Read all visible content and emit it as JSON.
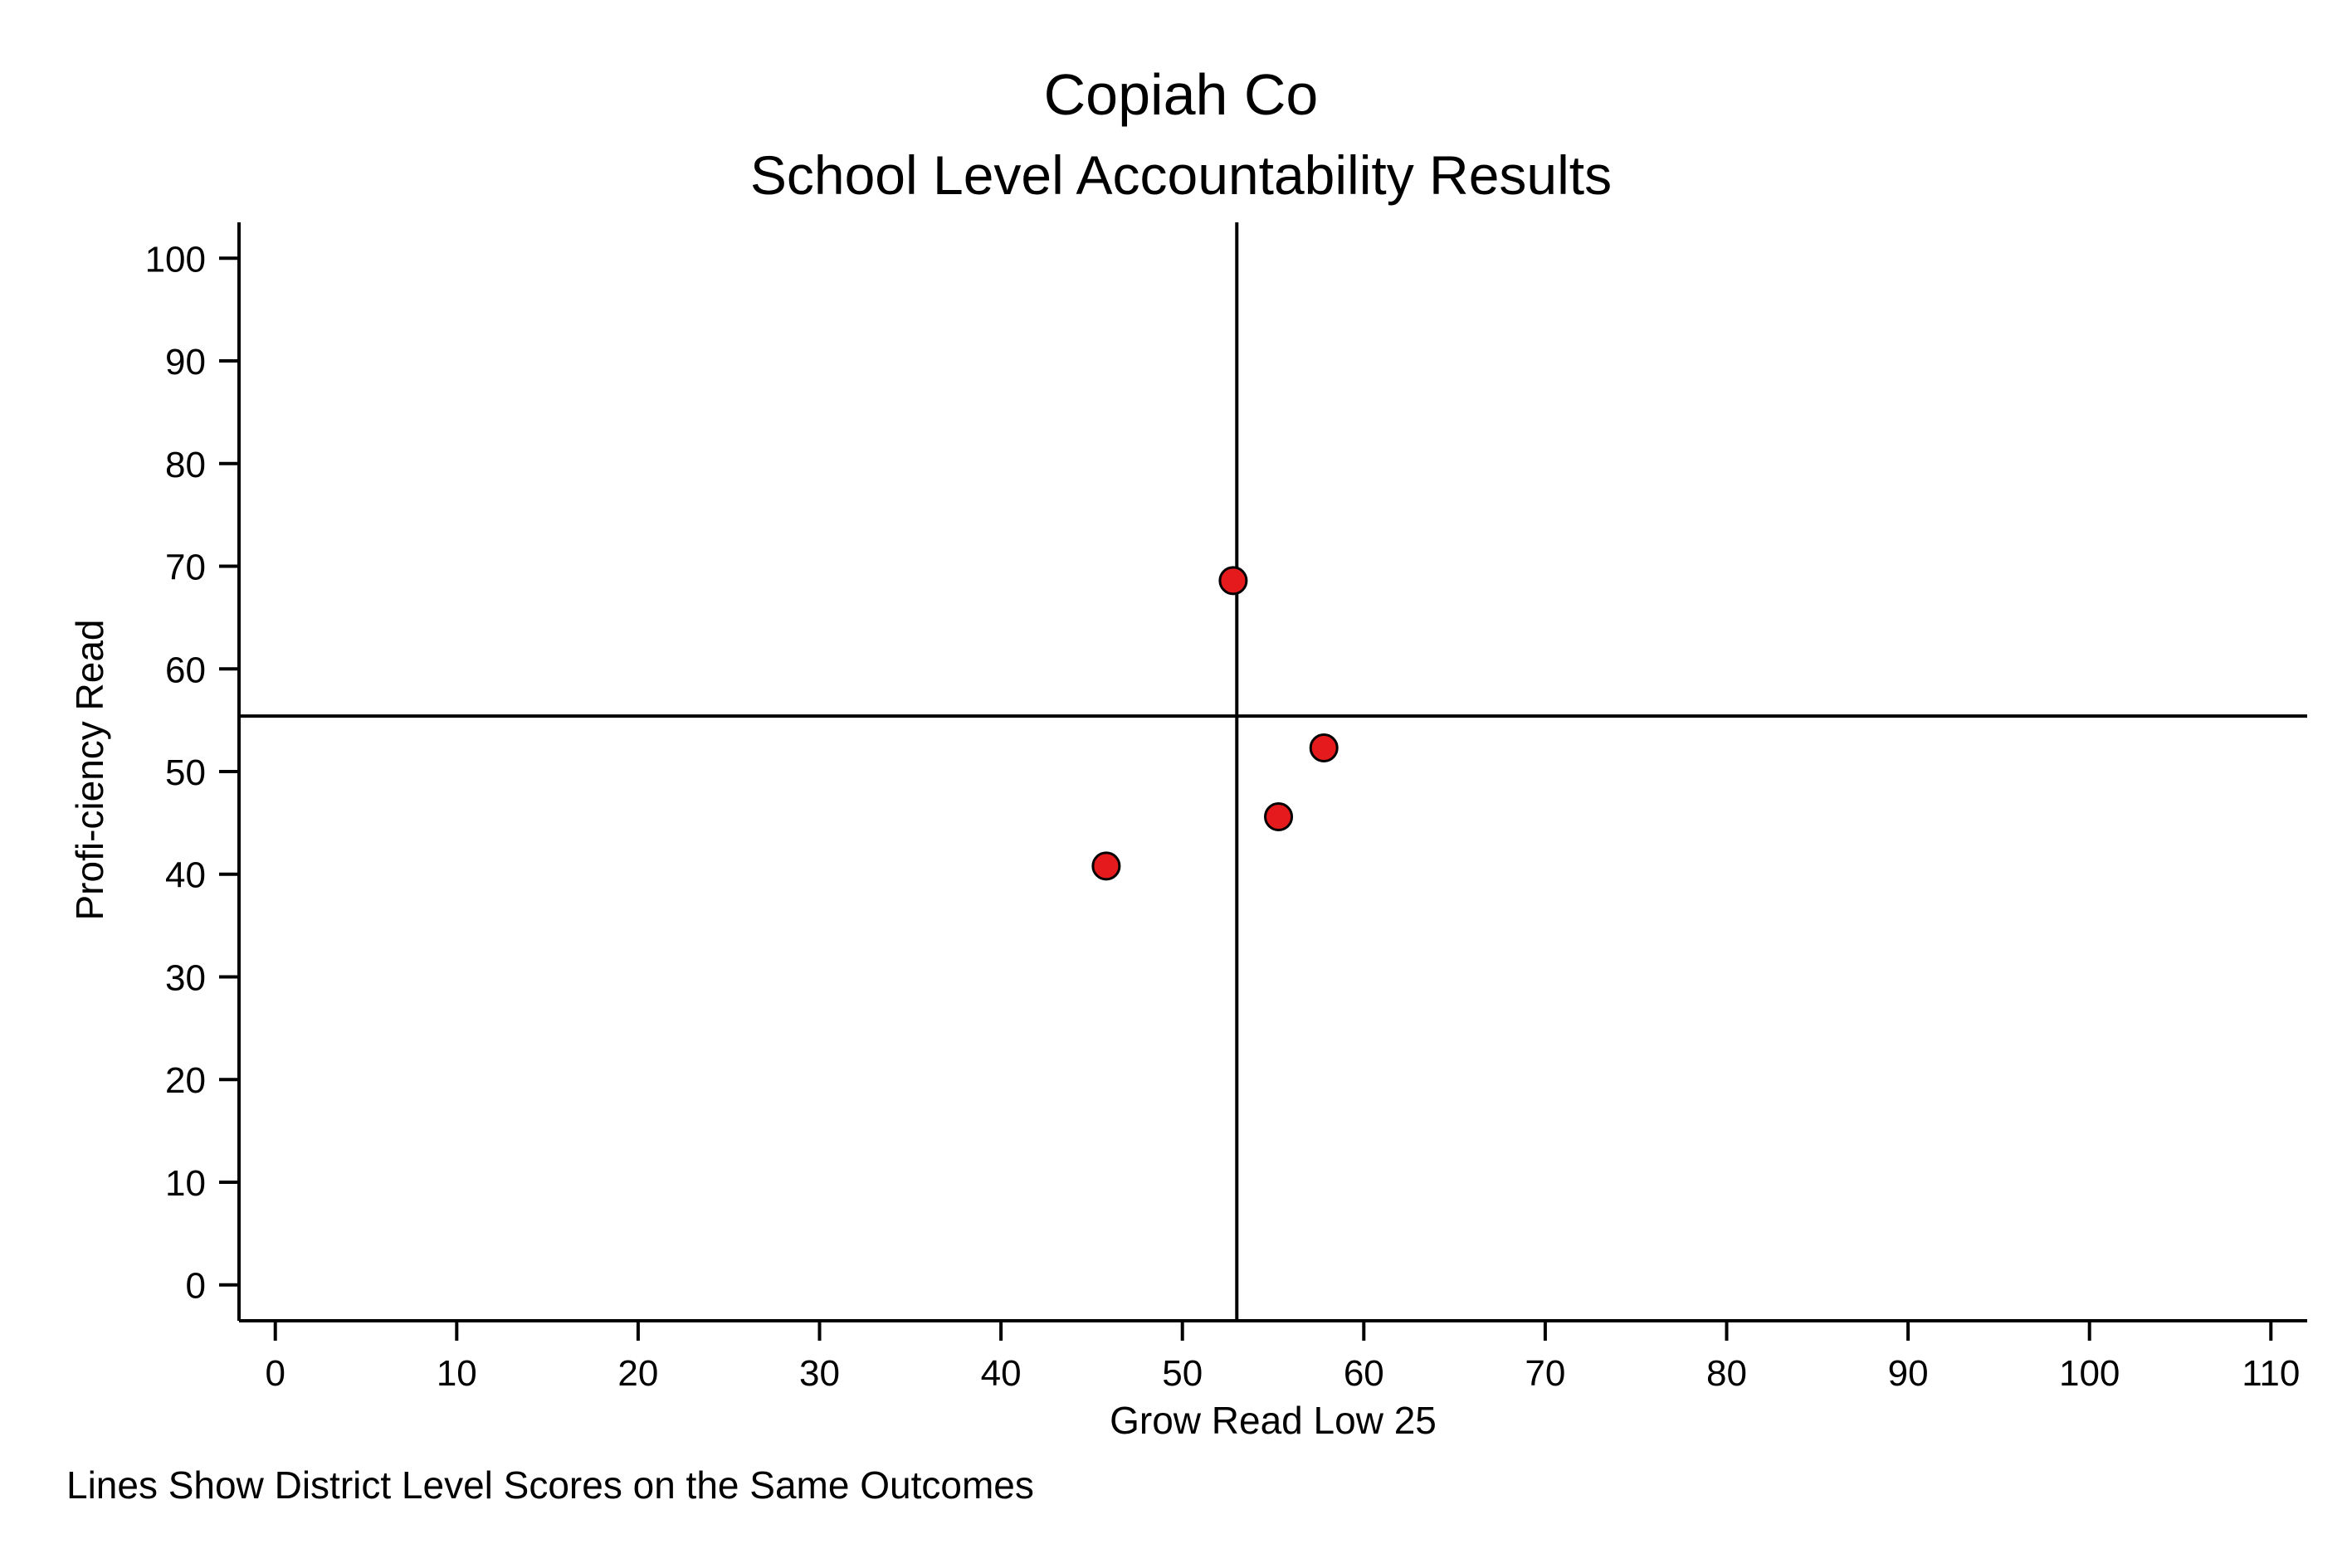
{
  "chart_data": {
    "type": "scatter",
    "title": "Copiah Co",
    "subtitle": "School Level Accountability Results",
    "xlabel": "Grow Read Low 25",
    "ylabel": "Profi-ciency Read",
    "note": "Lines Show District Level Scores on the Same Outcomes",
    "xlim": [
      -2,
      112
    ],
    "ylim": [
      -3.5,
      103.5
    ],
    "xticks": [
      0,
      10,
      20,
      30,
      40,
      50,
      60,
      70,
      80,
      90,
      100,
      110
    ],
    "yticks": [
      0,
      10,
      20,
      30,
      40,
      50,
      60,
      70,
      80,
      90,
      100
    ],
    "grid": false,
    "reference_lines": {
      "x": 53,
      "y": 55.4
    },
    "points": [
      {
        "x": 52.8,
        "y": 68.6
      },
      {
        "x": 57.8,
        "y": 52.3
      },
      {
        "x": 55.3,
        "y": 45.6
      },
      {
        "x": 45.8,
        "y": 40.8
      }
    ],
    "marker_fill": "#e41a1c",
    "marker_stroke": "#000000"
  }
}
